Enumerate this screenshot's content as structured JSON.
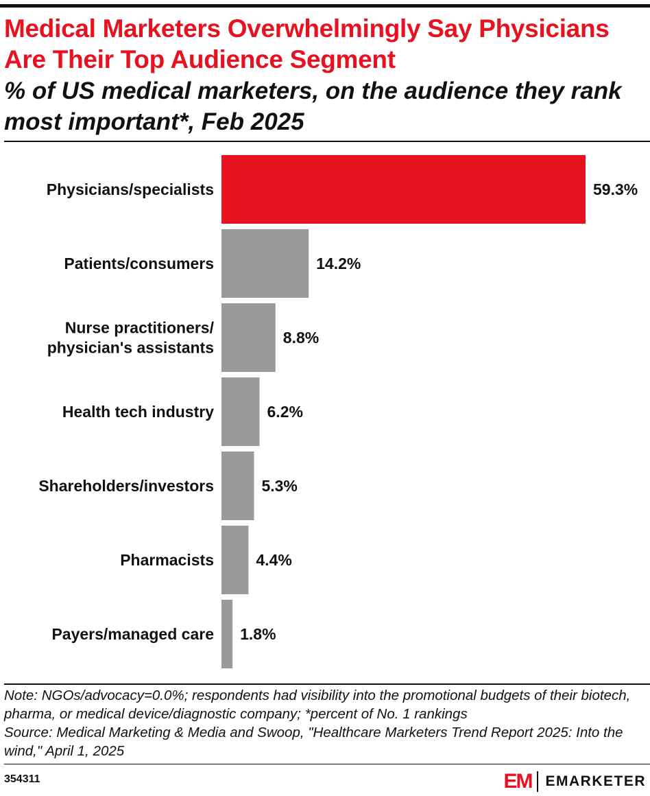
{
  "header": {
    "title": "Medical Marketers Overwhelmingly Say Physicians Are Their Top Audience Segment",
    "subtitle": "% of US medical marketers, on the audience they rank most important*, Feb 2025"
  },
  "chart_data": {
    "type": "bar",
    "orientation": "horizontal",
    "categories": [
      "Physicians/specialists",
      "Patients/consumers",
      "Nurse practitioners/ physician's assistants",
      "Health tech industry",
      "Shareholders/investors",
      "Pharmacists",
      "Payers/managed care"
    ],
    "category_lines": [
      [
        "Physicians/specialists"
      ],
      [
        "Patients/consumers"
      ],
      [
        "Nurse practitioners/",
        "physician's assistants"
      ],
      [
        "Health tech industry"
      ],
      [
        "Shareholders/investors"
      ],
      [
        "Pharmacists"
      ],
      [
        "Payers/managed care"
      ]
    ],
    "values": [
      59.3,
      14.2,
      8.8,
      6.2,
      5.3,
      4.4,
      1.8
    ],
    "value_labels": [
      "59.3%",
      "14.2%",
      "8.8%",
      "6.2%",
      "5.3%",
      "4.4%",
      "1.8%"
    ],
    "xlim": [
      0,
      59.3
    ],
    "grid": false,
    "legend": "none",
    "colors": {
      "highlight": "#e8111f",
      "default": "#999999"
    }
  },
  "footer": {
    "note": "Note: NGOs/advocacy=0.0%; respondents had visibility into the promotional budgets of their biotech, pharma, or medical device/diagnostic company; *percent of No. 1 rankings",
    "source": "Source: Medical Marketing & Media and Swoop, \"Healthcare Marketers Trend Report 2025: Into the wind,\" April 1, 2025",
    "chart_id": "354311"
  },
  "brand": {
    "mark": "EM",
    "name": "EMARKETER",
    "color": "#e8111f"
  }
}
